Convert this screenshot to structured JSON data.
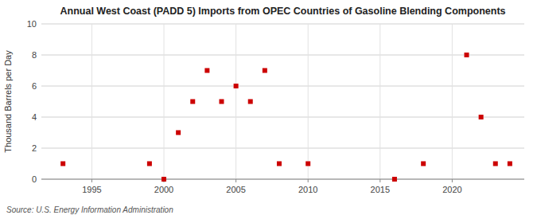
{
  "chart_data": {
    "type": "scatter",
    "title": "Annual West Coast (PADD 5) Imports from OPEC Countries of Gasoline Blending Components",
    "ylabel": "Thousand Barrels per Day",
    "source": "Source: U.S. Energy Information Administration",
    "x": [
      1993,
      1999,
      2000,
      2001,
      2002,
      2003,
      2004,
      2005,
      2006,
      2007,
      2008,
      2010,
      2016,
      2018,
      2021,
      2022,
      2023,
      2024
    ],
    "values": [
      1,
      1,
      0,
      3,
      5,
      7,
      5,
      6,
      5,
      7,
      1,
      1,
      0,
      1,
      8,
      4,
      1,
      1
    ],
    "color": "#cc0000",
    "marker": "square",
    "xlim": [
      1991.5,
      2025
    ],
    "ylim": [
      0,
      10
    ],
    "xticks": [
      1995,
      2000,
      2005,
      2010,
      2015,
      2020
    ],
    "yticks": [
      0,
      2,
      4,
      6,
      8,
      10
    ],
    "grid": true
  }
}
